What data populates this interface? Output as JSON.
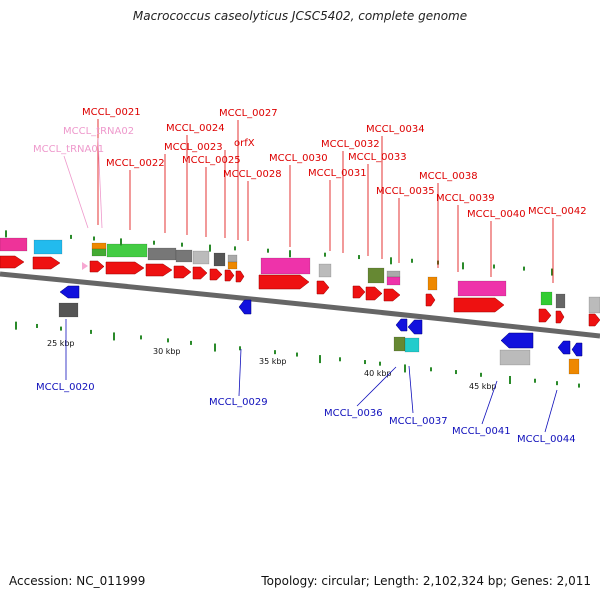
{
  "title": "Macrococcus caseolyticus JCSC5402, complete genome",
  "footer": {
    "accession": "Accession: NC_011999",
    "summary": "Topology: circular; Length: 2,102,324 bp; Genes: 2,011"
  },
  "colors": {
    "forward_label": "#dd0000",
    "reverse_label": "#1010bb",
    "trna_label": "#ee99cc",
    "backbone": "#666666",
    "tick": "#2a8a2a"
  },
  "scale": {
    "unit": "kbp",
    "ticks": [
      {
        "label": "25 kbp",
        "kbp": 25
      },
      {
        "label": "30 kbp",
        "kbp": 30
      },
      {
        "label": "35 kbp",
        "kbp": 35
      },
      {
        "label": "40 kbp",
        "kbp": 40
      },
      {
        "label": "45 kbp",
        "kbp": 45
      }
    ]
  },
  "gene_labels": {
    "forward": [
      "MCCL_0021",
      "MCCL_0022",
      "MCCL_0023",
      "MCCL_0024",
      "MCCL_0025",
      "orfX",
      "MCCL_0027",
      "MCCL_0028",
      "MCCL_0030",
      "MCCL_0031",
      "MCCL_0032",
      "MCCL_0033",
      "MCCL_0034",
      "MCCL_0035",
      "MCCL_0038",
      "MCCL_0039",
      "MCCL_0040",
      "MCCL_0042"
    ],
    "trna": [
      "MCCL_tRNA02",
      "MCCL_tRNA01"
    ],
    "reverse": [
      "MCCL_0020",
      "MCCL_0029",
      "MCCL_0036",
      "MCCL_0037",
      "MCCL_0041",
      "MCCL_0044"
    ]
  }
}
